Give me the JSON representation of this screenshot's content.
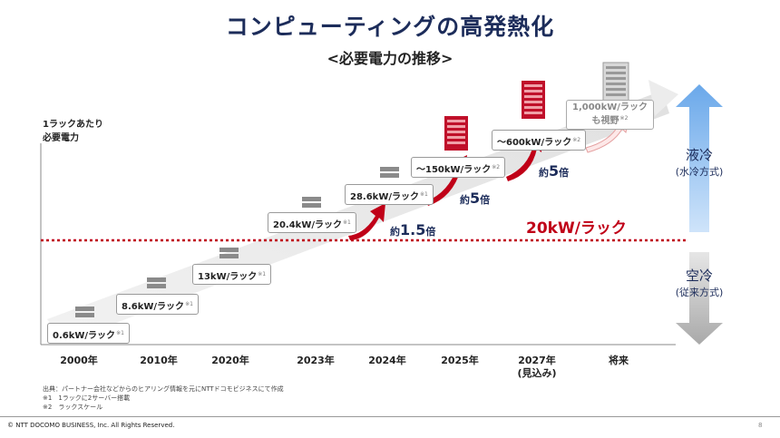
{
  "title": "コンピューティングの高発熱化",
  "subtitle": "<必要電力の推移>",
  "y_axis_label_1": "1ラックあたり",
  "y_axis_label_2": "必要電力",
  "stages": [
    {
      "label": "0.6kW/ラック",
      "note": "※1"
    },
    {
      "label": "8.6kW/ラック",
      "note": "※1"
    },
    {
      "label": "13kW/ラック",
      "note": "※1"
    },
    {
      "label": "20.4kW/ラック",
      "note": "※1"
    },
    {
      "label": "28.6kW/ラック",
      "note": "※1"
    },
    {
      "label": "～150kW/ラック",
      "note": "※2"
    },
    {
      "label": "～600kW/ラック",
      "note": "※2"
    }
  ],
  "future_box": {
    "line1": "1,000kW/ラック",
    "line2": "も視野",
    "note": "※2"
  },
  "multipliers": [
    {
      "prefix": "約",
      "value": "1.5",
      "suffix": "倍"
    },
    {
      "prefix": "約",
      "value": "5",
      "suffix": "倍"
    },
    {
      "prefix": "約",
      "value": "5",
      "suffix": "倍"
    }
  ],
  "threshold_label": "20kW/ラック",
  "liquid_cooling": {
    "main": "液冷",
    "sub": "(水冷方式)"
  },
  "air_cooling": {
    "main": "空冷",
    "sub": "(従来方式)"
  },
  "x_ticks": [
    "2000年",
    "2010年",
    "2020年",
    "2023年",
    "2024年",
    "2025年",
    "2027年",
    "将来"
  ],
  "x_tick_sub": "(見込み)",
  "source_lines": [
    "出典：パートナー会社などからのヒアリング情報を元にNTTドコモビジネスにて作成",
    "※1　1ラックに2サーバー搭載",
    "※2　ラックスケール"
  ],
  "copyright": "© NTT DOCOMO BUSINESS, Inc. All Rights Reserved.",
  "page_number": "8",
  "colors": {
    "title": "#1c2c5a",
    "threshold": "#c00018",
    "arrow_red": "#c00018",
    "liquid": "#8fc0f0",
    "air": "#c4c4c4",
    "rack_red": "#c0102a"
  }
}
